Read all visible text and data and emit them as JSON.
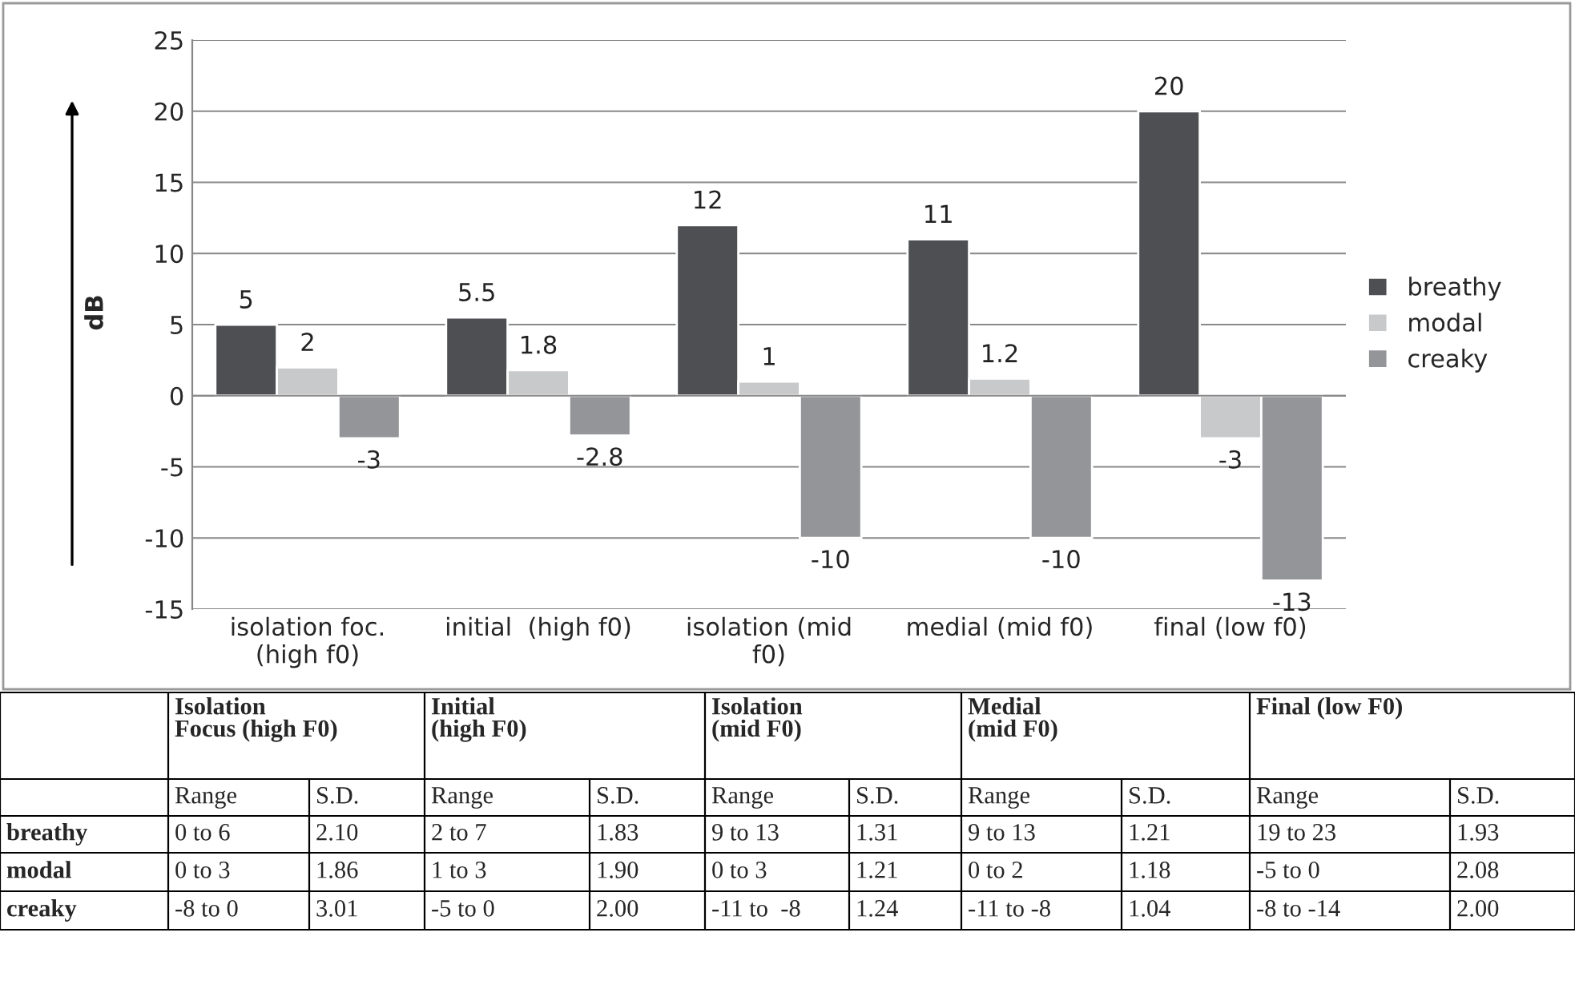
{
  "chart_data": [
    {
      "type": "bar",
      "ylabel": "dB",
      "categories": [
        "isolation foc.\n(high f0)",
        "initial  (high f0)",
        "isolation (mid\nf0)",
        "medial (mid f0)",
        "final (low f0)"
      ],
      "series": [
        {
          "name": "breathy",
          "color": "#4d4f53",
          "values": [
            5,
            5.5,
            12,
            11,
            20
          ]
        },
        {
          "name": "modal",
          "color": "#c8c9cb",
          "values": [
            2,
            1.8,
            1,
            1.2,
            -3
          ]
        },
        {
          "name": "creaky",
          "color": "#939598",
          "values": [
            -3,
            -2.8,
            -10,
            -10,
            -13
          ]
        }
      ],
      "ylim": [
        -15,
        25
      ],
      "yticks": [
        -15,
        -10,
        -5,
        0,
        5,
        10,
        15,
        20,
        25
      ],
      "grid": "y",
      "legend": "right",
      "data_labels": true
    },
    {
      "type": "other",
      "annotations": [
        "Isolation\nFocus (high F0)",
        "Initial\n(high F0)",
        "Isolation\n(mid F0)",
        "Medial\n(mid F0)",
        "Final (low F0)",
        "Range",
        "S.D.",
        "Range",
        "S.D.",
        "Range",
        "S.D.",
        "Range",
        "S.D.",
        "Range",
        "S.D.",
        "breathy",
        "0 to 6",
        "2.10",
        "2 to 7",
        "1.83",
        "9 to 13",
        "1.31",
        "9 to 13",
        "1.21",
        "19 to 23",
        "1.93",
        "modal",
        "0 to 3",
        "1.86",
        "1 to 3",
        "1.90",
        "0 to 3",
        "1.21",
        "0 to 2",
        "1.18",
        "-5 to 0",
        "2.08",
        "creaky",
        "-8 to 0",
        "3.01",
        "-5 to 0",
        "2.00",
        "-11 to  -8",
        "1.24",
        "-11 to -8",
        "1.04",
        "-8 to -14",
        "2.00"
      ]
    }
  ]
}
